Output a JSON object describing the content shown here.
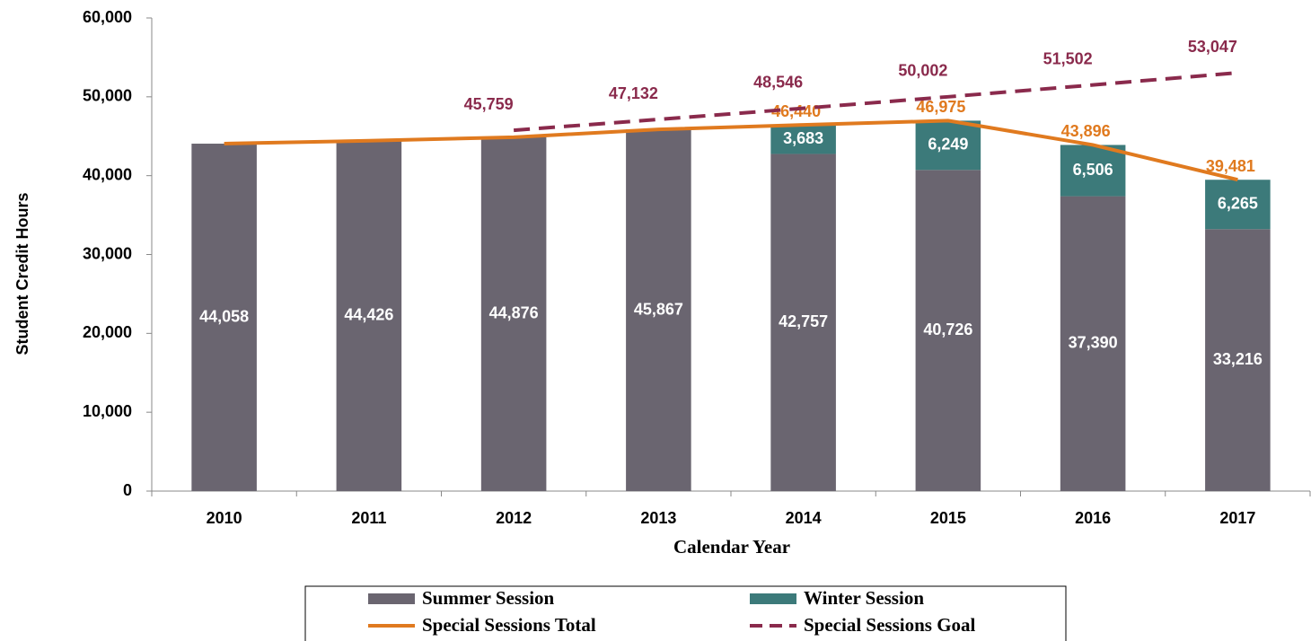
{
  "chart_data": {
    "type": "stacked_bar_line",
    "x_label": "Calendar Year",
    "y_label": "Student Credit Hours",
    "categories": [
      "2010",
      "2011",
      "2012",
      "2013",
      "2014",
      "2015",
      "2016",
      "2017"
    ],
    "ylim": [
      0,
      60000
    ],
    "yticks": [
      {
        "value": 0,
        "label": "0"
      },
      {
        "value": 10000,
        "label": "10,000"
      },
      {
        "value": 20000,
        "label": "20,000"
      },
      {
        "value": 30000,
        "label": "30,000"
      },
      {
        "value": 40000,
        "label": "40,000"
      },
      {
        "value": 50000,
        "label": "50,000"
      },
      {
        "value": 60000,
        "label": "60,000"
      }
    ],
    "series": [
      {
        "name": "Summer Session",
        "type": "bar",
        "color": "#6a6570",
        "values": [
          44058,
          44426,
          44876,
          45867,
          42757,
          40726,
          37390,
          33216
        ],
        "value_labels": [
          "44,058",
          "44,426",
          "44,876",
          "45,867",
          "42,757",
          "40,726",
          "37,390",
          "33,216"
        ]
      },
      {
        "name": "Winter Session",
        "type": "bar",
        "color": "#3c7a7a",
        "values": [
          null,
          null,
          null,
          null,
          3683,
          6249,
          6506,
          6265
        ],
        "value_labels": [
          null,
          null,
          null,
          null,
          "3,683",
          "6,249",
          "6,506",
          "6,265"
        ]
      },
      {
        "name": "Special Sessions Total",
        "type": "line",
        "color": "#e07a1f",
        "dashed": false,
        "values": [
          44058,
          44426,
          44876,
          45867,
          46440,
          46975,
          43896,
          39481
        ],
        "value_labels": [
          null,
          null,
          null,
          null,
          "46,440",
          "46,975",
          "43,896",
          "39,481"
        ]
      },
      {
        "name": "Special Sessions Goal",
        "type": "line",
        "color": "#8a2a4c",
        "dashed": true,
        "values": [
          null,
          null,
          45759,
          47132,
          48546,
          50002,
          51502,
          53047
        ],
        "value_labels": [
          null,
          null,
          "45,759",
          "47,132",
          "48,546",
          "50,002",
          "51,502",
          "53,047"
        ]
      }
    ]
  }
}
